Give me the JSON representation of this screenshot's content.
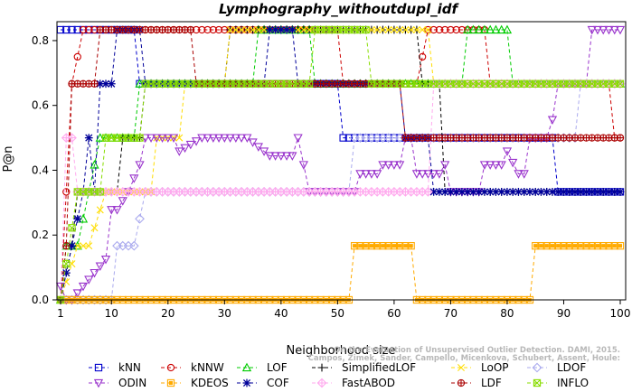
{
  "chart_data": {
    "type": "line",
    "title": "Lymphography_withoutdupl_idf",
    "xlabel": "Neighborhood size",
    "ylabel": "P@n",
    "xlim": [
      1,
      100
    ],
    "ylim": [
      0,
      0.85
    ],
    "x_ticks": [
      1,
      10,
      20,
      30,
      40,
      50,
      60,
      70,
      80,
      90,
      100
    ],
    "y_ticks": [
      0.0,
      0.2,
      0.4,
      0.6,
      0.8
    ],
    "x_tick_labels": [
      "1",
      "10",
      "20",
      "30",
      "40",
      "50",
      "60",
      "70",
      "80",
      "90",
      "100"
    ],
    "y_tick_labels": [
      "0.0",
      "0.2",
      "0.4",
      "0.6",
      "0.8"
    ],
    "grid": false,
    "legend_position": "bottom",
    "credit": [
      "Campos, Zimek, Sander, Campello, Micenkova, Schubert, Assent, Houle:",
      "On the Evaluation of Unsupervised Outlier Detection. DAMI, 2015."
    ],
    "series": [
      {
        "name": "kNN",
        "color": "#0000cc",
        "marker": "square",
        "points": [
          [
            1,
            0.8333
          ],
          [
            14,
            0.8333
          ],
          [
            15,
            0.6667
          ],
          [
            50,
            0.6667
          ],
          [
            51,
            0.5
          ],
          [
            68,
            0.5
          ],
          [
            69,
            0.5
          ],
          [
            88,
            0.5
          ],
          [
            89,
            0.3333
          ],
          [
            100,
            0.3333
          ]
        ]
      },
      {
        "name": "kNNW",
        "color": "#cc0000",
        "marker": "circle",
        "points": [
          [
            1,
            0
          ],
          [
            2,
            0.3333
          ],
          [
            3,
            0.6667
          ],
          [
            5,
            0.8333
          ],
          [
            10,
            0.8333
          ],
          [
            30,
            0.8333
          ],
          [
            50,
            0.8333
          ],
          [
            51,
            0.6667
          ],
          [
            64,
            0.6667
          ],
          [
            66,
            0.8333
          ],
          [
            76,
            0.8333
          ],
          [
            77,
            0.6667
          ],
          [
            98,
            0.6667
          ],
          [
            99,
            0.5
          ],
          [
            100,
            0.5
          ]
        ]
      },
      {
        "name": "LOF",
        "color": "#00cc00",
        "marker": "triangle",
        "points": [
          [
            1,
            0
          ],
          [
            2,
            0.1667
          ],
          [
            4,
            0.1667
          ],
          [
            6,
            0.3333
          ],
          [
            8,
            0.5
          ],
          [
            14,
            0.5
          ],
          [
            15,
            0.6667
          ],
          [
            35,
            0.6667
          ],
          [
            36,
            0.8333
          ],
          [
            45,
            0.8333
          ],
          [
            46,
            0.6667
          ],
          [
            72,
            0.6667
          ],
          [
            73,
            0.8333
          ],
          [
            80,
            0.8333
          ],
          [
            81,
            0.6667
          ],
          [
            100,
            0.6667
          ]
        ]
      },
      {
        "name": "SimplifiedLOF",
        "color": "#000000",
        "marker": "plus",
        "points": [
          [
            1,
            0
          ],
          [
            3,
            0.1667
          ],
          [
            4,
            0.3333
          ],
          [
            11,
            0.3333
          ],
          [
            12,
            0.5
          ],
          [
            15,
            0.5
          ],
          [
            16,
            0.6667
          ],
          [
            30,
            0.6667
          ],
          [
            31,
            0.8333
          ],
          [
            64,
            0.8333
          ],
          [
            65,
            0.6667
          ],
          [
            68,
            0.6667
          ],
          [
            69,
            0.3333
          ],
          [
            100,
            0.3333
          ]
        ]
      },
      {
        "name": "LoOP",
        "color": "#ffdd00",
        "marker": "x",
        "points": [
          [
            1,
            0
          ],
          [
            4,
            0.1667
          ],
          [
            6,
            0.1667
          ],
          [
            9,
            0.3333
          ],
          [
            17,
            0.3333
          ],
          [
            18,
            0.5
          ],
          [
            22,
            0.5
          ],
          [
            23,
            0.6667
          ],
          [
            30,
            0.6667
          ],
          [
            31,
            0.8333
          ],
          [
            66,
            0.8333
          ],
          [
            67,
            0.6667
          ],
          [
            100,
            0.6667
          ]
        ]
      },
      {
        "name": "LDOF",
        "color": "#aaaaee",
        "marker": "diamond",
        "points": [
          [
            1,
            0
          ],
          [
            10,
            0
          ],
          [
            11,
            0.1667
          ],
          [
            14,
            0.1667
          ],
          [
            16,
            0.3333
          ],
          [
            52,
            0.3333
          ],
          [
            53,
            0.5
          ],
          [
            92,
            0.5
          ],
          [
            93,
            0.6667
          ],
          [
            100,
            0.6667
          ]
        ]
      },
      {
        "name": "ODIN",
        "color": "#9933cc",
        "marker": "triangle-down",
        "points": [
          [
            1,
            0.0417
          ],
          [
            2,
            0
          ],
          [
            3,
            0
          ],
          [
            5,
            0.0417
          ],
          [
            7,
            0.0833
          ],
          [
            9,
            0.125
          ],
          [
            10,
            0.2778
          ],
          [
            11,
            0.2778
          ],
          [
            13,
            0.3333
          ],
          [
            15,
            0.4167
          ],
          [
            16,
            0.5
          ],
          [
            21,
            0.5
          ],
          [
            22,
            0.4583
          ],
          [
            26,
            0.5
          ],
          [
            34,
            0.5
          ],
          [
            37,
            0.4583
          ],
          [
            38,
            0.4444
          ],
          [
            42,
            0.4444
          ],
          [
            43,
            0.5
          ],
          [
            44,
            0.4167
          ],
          [
            45,
            0.3333
          ],
          [
            53,
            0.3333
          ],
          [
            54,
            0.3889
          ],
          [
            57,
            0.3889
          ],
          [
            58,
            0.4167
          ],
          [
            61,
            0.4167
          ],
          [
            62,
            0.5
          ],
          [
            63,
            0.5
          ],
          [
            64,
            0.3889
          ],
          [
            68,
            0.3889
          ],
          [
            69,
            0.4167
          ],
          [
            70,
            0.3333
          ],
          [
            75,
            0.3333
          ],
          [
            76,
            0.4167
          ],
          [
            79,
            0.4167
          ],
          [
            80,
            0.4583
          ],
          [
            82,
            0.3889
          ],
          [
            83,
            0.3889
          ],
          [
            84,
            0.5
          ],
          [
            87,
            0.5
          ],
          [
            88,
            0.5556
          ],
          [
            89,
            0.6667
          ],
          [
            94,
            0.6667
          ],
          [
            95,
            0.8333
          ],
          [
            100,
            0.8333
          ]
        ]
      },
      {
        "name": "KDEOS",
        "color": "#ffaa00",
        "marker": "square-filled",
        "points": [
          [
            1,
            0
          ],
          [
            52,
            0
          ],
          [
            53,
            0.1667
          ],
          [
            63,
            0.1667
          ],
          [
            64,
            0
          ],
          [
            84,
            0
          ],
          [
            85,
            0.1667
          ],
          [
            100,
            0.1667
          ]
        ]
      },
      {
        "name": "COF",
        "color": "#000099",
        "marker": "star",
        "points": [
          [
            1,
            0
          ],
          [
            3,
            0.1667
          ],
          [
            5,
            0.3333
          ],
          [
            6,
            0.5
          ],
          [
            7,
            0.3333
          ],
          [
            8,
            0.6667
          ],
          [
            10,
            0.6667
          ],
          [
            11,
            0.8333
          ],
          [
            15,
            0.8333
          ],
          [
            16,
            0.6667
          ],
          [
            37,
            0.6667
          ],
          [
            38,
            0.8333
          ],
          [
            42,
            0.8333
          ],
          [
            43,
            0.6667
          ],
          [
            61,
            0.6667
          ],
          [
            62,
            0.5
          ],
          [
            66,
            0.5
          ],
          [
            67,
            0.3333
          ],
          [
            100,
            0.3333
          ]
        ]
      },
      {
        "name": "FastABOD",
        "color": "#ffaaee",
        "marker": "diamond-plus",
        "points": [
          [
            1,
            0
          ],
          [
            2,
            0.5
          ],
          [
            3,
            0.5
          ],
          [
            4,
            0.3333
          ],
          [
            15,
            0.3333
          ],
          [
            16,
            0.3333
          ],
          [
            52,
            0.3333
          ],
          [
            53,
            0.3333
          ],
          [
            66,
            0.3333
          ],
          [
            67,
            0.6667
          ],
          [
            100,
            0.6667
          ]
        ]
      },
      {
        "name": "LDF",
        "color": "#aa0000",
        "marker": "circle-plus",
        "points": [
          [
            1,
            0
          ],
          [
            2,
            0.1667
          ],
          [
            3,
            0.6667
          ],
          [
            4,
            0.6667
          ],
          [
            7,
            0.6667
          ],
          [
            8,
            0.8333
          ],
          [
            24,
            0.8333
          ],
          [
            25,
            0.6667
          ],
          [
            50,
            0.6667
          ],
          [
            51,
            0.6667
          ],
          [
            61,
            0.6667
          ],
          [
            62,
            0.5
          ],
          [
            99,
            0.5
          ],
          [
            100,
            0.5
          ]
        ]
      },
      {
        "name": "INFLO",
        "color": "#88dd00",
        "marker": "square-x",
        "points": [
          [
            1,
            0
          ],
          [
            4,
            0.3333
          ],
          [
            8,
            0.3333
          ],
          [
            9,
            0.5
          ],
          [
            15,
            0.5
          ],
          [
            16,
            0.6667
          ],
          [
            45,
            0.6667
          ],
          [
            46,
            0.8333
          ],
          [
            55,
            0.8333
          ],
          [
            56,
            0.6667
          ],
          [
            100,
            0.6667
          ]
        ]
      }
    ]
  }
}
